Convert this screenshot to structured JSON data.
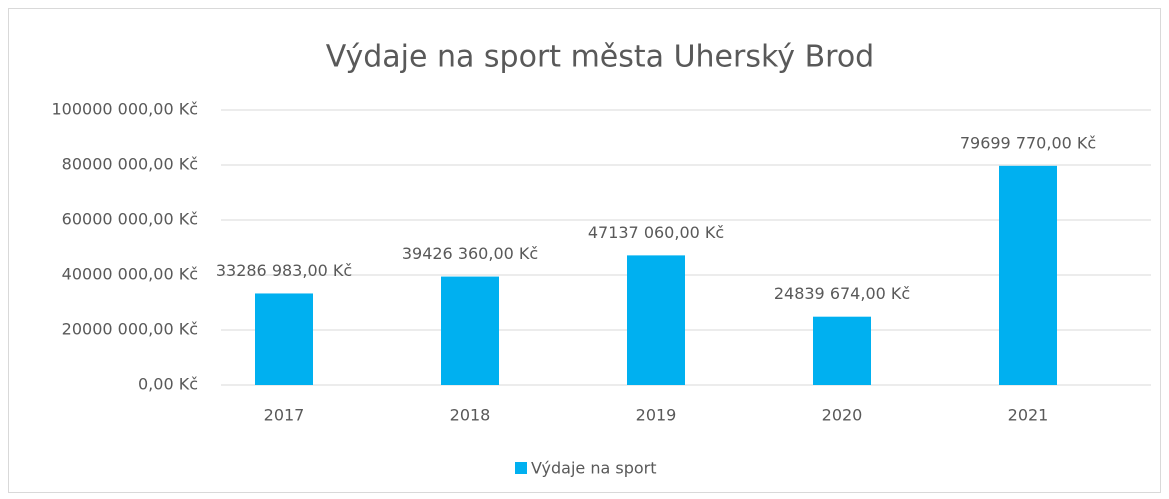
{
  "chart_data": {
    "type": "bar",
    "title": "Výdaje na sport města Uherský Brod",
    "categories": [
      "2017",
      "2018",
      "2019",
      "2020",
      "2021"
    ],
    "series": [
      {
        "name": "Výdaje na sport",
        "color": "#00b0f0",
        "values": [
          33286983,
          39426360,
          47137060,
          24839674,
          79699770
        ],
        "value_labels": [
          "33286 983,00 Kč",
          "39426 360,00 Kč",
          "47137 060,00 Kč",
          "24839 674,00 Kč",
          "79699 770,00 Kč"
        ]
      }
    ],
    "ylim": [
      0,
      100000000
    ],
    "yticks": [
      {
        "value": 0,
        "label": "0,00 Kč"
      },
      {
        "value": 20000000,
        "label": "20000 000,00 Kč"
      },
      {
        "value": 40000000,
        "label": "40000 000,00 Kč"
      },
      {
        "value": 60000000,
        "label": "60000 000,00 Kč"
      },
      {
        "value": 80000000,
        "label": "80000 000,00 Kč"
      },
      {
        "value": 100000000,
        "label": "100000 000,00 Kč"
      }
    ],
    "grid": true,
    "legend": "bottom"
  }
}
